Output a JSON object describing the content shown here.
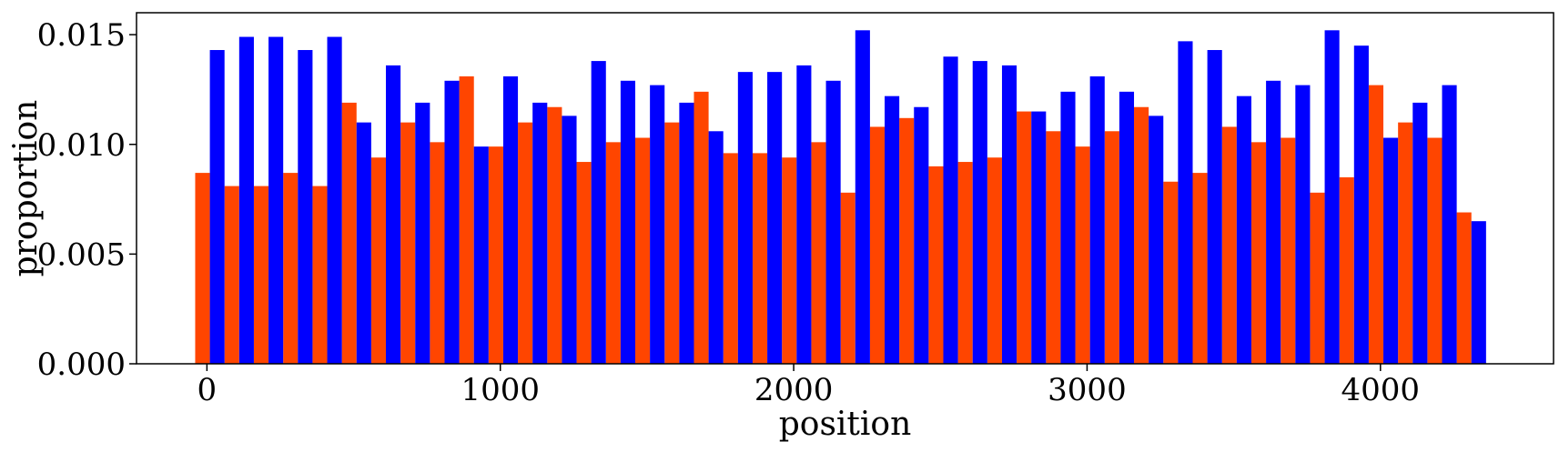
{
  "chart_data": {
    "type": "bar",
    "title": "",
    "xlabel": "position",
    "ylabel": "proportion",
    "xlim": [
      -240,
      4590
    ],
    "ylim": [
      0,
      0.016
    ],
    "xticks": [
      0,
      1000,
      2000,
      3000,
      4000
    ],
    "xtick_labels": [
      "0",
      "1000",
      "2000",
      "3000",
      "4000"
    ],
    "yticks": [
      0,
      0.005,
      0.01,
      0.015
    ],
    "ytick_labels": [
      "0.000",
      "0.005",
      "0.010",
      "0.015"
    ],
    "grid": false,
    "legend": false,
    "bin_width": 100,
    "bin_starts": [
      0,
      100,
      200,
      300,
      400,
      500,
      600,
      700,
      800,
      900,
      1000,
      1100,
      1200,
      1300,
      1400,
      1500,
      1600,
      1700,
      1800,
      1900,
      2000,
      2100,
      2200,
      2300,
      2400,
      2500,
      2600,
      2700,
      2800,
      2900,
      3000,
      3100,
      3200,
      3300,
      3400,
      3500,
      3600,
      3700,
      3800,
      3900,
      4000,
      4100,
      4200,
      4300
    ],
    "series": [
      {
        "color": "#ff4500",
        "values": [
          0.0087,
          0.0081,
          0.0081,
          0.0087,
          0.0081,
          0.0119,
          0.0094,
          0.011,
          0.0101,
          0.0131,
          0.0099,
          0.011,
          0.0117,
          0.0092,
          0.0101,
          0.0103,
          0.011,
          0.0124,
          0.0096,
          0.0096,
          0.0094,
          0.0101,
          0.0078,
          0.0108,
          0.0112,
          0.009,
          0.0092,
          0.0094,
          0.0115,
          0.0106,
          0.0099,
          0.0106,
          0.0117,
          0.0083,
          0.0087,
          0.0108,
          0.0101,
          0.0103,
          0.0078,
          0.0085,
          0.0127,
          0.011,
          0.0103,
          0.0069
        ]
      },
      {
        "color": "#0000ff",
        "values": [
          0.0143,
          0.0149,
          0.0149,
          0.0143,
          0.0149,
          0.011,
          0.0136,
          0.0119,
          0.0129,
          0.0099,
          0.0131,
          0.0119,
          0.0113,
          0.0138,
          0.0129,
          0.0127,
          0.0119,
          0.0106,
          0.0133,
          0.0133,
          0.0136,
          0.0129,
          0.0152,
          0.0122,
          0.0117,
          0.014,
          0.0138,
          0.0136,
          0.0115,
          0.0124,
          0.0131,
          0.0124,
          0.0113,
          0.0147,
          0.0143,
          0.0122,
          0.0129,
          0.0127,
          0.0152,
          0.0145,
          0.0103,
          0.0119,
          0.0127,
          0.0065
        ]
      }
    ]
  }
}
